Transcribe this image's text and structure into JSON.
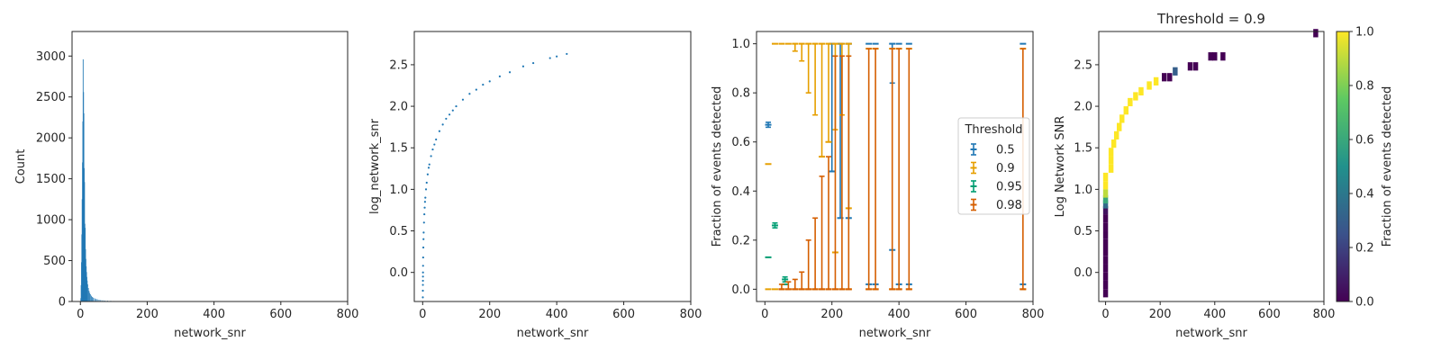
{
  "chart_data": [
    {
      "type": "bar",
      "xlabel": "network_snr",
      "ylabel": "Count",
      "xlim": [
        -25,
        800
      ],
      "ylim": [
        0,
        3300
      ],
      "xticks": [
        "0",
        "200",
        "400",
        "600",
        "800"
      ],
      "yticks": [
        "0",
        "500",
        "1000",
        "1500",
        "2000",
        "2500",
        "3000"
      ],
      "color": "#1f77b4",
      "histogram": [
        [
          0.5,
          40
        ],
        [
          1.5,
          200
        ],
        [
          2.5,
          480
        ],
        [
          3.5,
          820
        ],
        [
          4.5,
          1250
        ],
        [
          5.5,
          1700
        ],
        [
          6.5,
          2200
        ],
        [
          7.5,
          2960
        ],
        [
          8.5,
          2560
        ],
        [
          9.5,
          2300
        ],
        [
          10.5,
          1630
        ],
        [
          11.5,
          1460
        ],
        [
          12.5,
          950
        ],
        [
          13.5,
          900
        ],
        [
          14.5,
          640
        ],
        [
          15.5,
          520
        ],
        [
          16.5,
          430
        ],
        [
          17.5,
          360
        ],
        [
          18.5,
          300
        ],
        [
          19.5,
          255
        ],
        [
          21,
          210
        ],
        [
          23,
          165
        ],
        [
          25,
          130
        ],
        [
          27,
          105
        ],
        [
          29,
          88
        ],
        [
          32,
          70
        ],
        [
          35,
          56
        ],
        [
          38,
          46
        ],
        [
          42,
          38
        ],
        [
          46,
          32
        ],
        [
          50,
          27
        ],
        [
          55,
          22
        ],
        [
          60,
          18
        ],
        [
          66,
          15
        ],
        [
          72,
          12
        ],
        [
          80,
          10
        ],
        [
          90,
          8
        ],
        [
          100,
          6
        ],
        [
          115,
          5
        ],
        [
          130,
          4
        ],
        [
          150,
          3
        ],
        [
          175,
          2
        ],
        [
          200,
          2
        ],
        [
          250,
          2
        ]
      ]
    },
    {
      "type": "scatter",
      "xlabel": "network_snr",
      "ylabel": "log_network_snr",
      "xlim": [
        -25,
        800
      ],
      "ylim": [
        -0.35,
        2.9
      ],
      "xticks": [
        "0",
        "200",
        "400",
        "600",
        "800"
      ],
      "yticks": [
        "0.0",
        "0.5",
        "1.0",
        "1.5",
        "2.0",
        "2.5"
      ],
      "color": "#1f77b4",
      "points": [
        [
          0.5,
          -0.3
        ],
        [
          0.6,
          -0.22
        ],
        [
          0.7,
          -0.15
        ],
        [
          0.8,
          -0.1
        ],
        [
          0.9,
          -0.05
        ],
        [
          1,
          0
        ],
        [
          1.2,
          0.08
        ],
        [
          1.5,
          0.18
        ],
        [
          2,
          0.3
        ],
        [
          2.5,
          0.4
        ],
        [
          3,
          0.48
        ],
        [
          4,
          0.6
        ],
        [
          5,
          0.7
        ],
        [
          6,
          0.78
        ],
        [
          7,
          0.85
        ],
        [
          8,
          0.9
        ],
        [
          10,
          1.0
        ],
        [
          12,
          1.08
        ],
        [
          15,
          1.18
        ],
        [
          18,
          1.26
        ],
        [
          20,
          1.3
        ],
        [
          25,
          1.4
        ],
        [
          30,
          1.48
        ],
        [
          35,
          1.54
        ],
        [
          40,
          1.6
        ],
        [
          50,
          1.7
        ],
        [
          60,
          1.78
        ],
        [
          70,
          1.85
        ],
        [
          80,
          1.9
        ],
        [
          90,
          1.95
        ],
        [
          100,
          2.0
        ],
        [
          120,
          2.08
        ],
        [
          140,
          2.15
        ],
        [
          160,
          2.2
        ],
        [
          180,
          2.26
        ],
        [
          200,
          2.3
        ],
        [
          230,
          2.36
        ],
        [
          260,
          2.41
        ],
        [
          300,
          2.48
        ],
        [
          330,
          2.52
        ],
        [
          380,
          2.58
        ],
        [
          400,
          2.6
        ],
        [
          430,
          2.63
        ]
      ]
    },
    {
      "type": "scatter",
      "xlabel": "network_snr",
      "ylabel": "Fraction of events detected",
      "xlim": [
        -25,
        800
      ],
      "ylim": [
        -0.05,
        1.05
      ],
      "xticks": [
        "0",
        "200",
        "400",
        "600",
        "800"
      ],
      "yticks": [
        "0.0",
        "0.2",
        "0.4",
        "0.6",
        "0.8",
        "1.0"
      ],
      "legend": {
        "title": "Threshold",
        "position": "center-right"
      },
      "series": [
        {
          "name": "0.5",
          "color": "#1f77b4",
          "points": [
            [
              10,
              0.67,
              0.01,
              0.01
            ],
            [
              200,
              1,
              0.52,
              0
            ],
            [
              225,
              1,
              0.71,
              0
            ],
            [
              250,
              1,
              0.71,
              0
            ],
            [
              200,
              0.48,
              0,
              0
            ],
            [
              225,
              0.29,
              0,
              0
            ],
            [
              250,
              0.29,
              0,
              0
            ],
            [
              310,
              1,
              0,
              0
            ],
            [
              330,
              1,
              0,
              0
            ],
            [
              310,
              0.02,
              0,
              0
            ],
            [
              330,
              0.02,
              0,
              0
            ],
            [
              380,
              1,
              0.16,
              0
            ],
            [
              380,
              0.16,
              0,
              0
            ],
            [
              400,
              1,
              0,
              0
            ],
            [
              430,
              1,
              0,
              0
            ],
            [
              400,
              0.02,
              0,
              0
            ],
            [
              430,
              0.02,
              0,
              0
            ],
            [
              770,
              1,
              0,
              0
            ],
            [
              770,
              0.02,
              0,
              0
            ]
          ]
        },
        {
          "name": "0.9",
          "color": "#e69f00",
          "points": [
            [
              10,
              0.51,
              0,
              0
            ],
            [
              30,
              1,
              0,
              0
            ],
            [
              50,
              1,
              0,
              0
            ],
            [
              70,
              1,
              0,
              0
            ],
            [
              90,
              1,
              0.03,
              0
            ],
            [
              110,
              1,
              0.07,
              0
            ],
            [
              130,
              1,
              0.2,
              0
            ],
            [
              150,
              1,
              0.29,
              0
            ],
            [
              170,
              1,
              0.46,
              0
            ],
            [
              190,
              1,
              0.4,
              0
            ],
            [
              210,
              1,
              0.35,
              0
            ],
            [
              230,
              1,
              0.29,
              0
            ],
            [
              250,
              1,
              0.67,
              0
            ],
            [
              170,
              0.54,
              0,
              0
            ],
            [
              190,
              0.6,
              0,
              0
            ],
            [
              210,
              0.15,
              0,
              0
            ],
            [
              250,
              0.33,
              0,
              0
            ],
            [
              310,
              0.98,
              0,
              0
            ],
            [
              330,
              0.98,
              0,
              0
            ],
            [
              380,
              0.98,
              0,
              0
            ],
            [
              400,
              0.98,
              0,
              0
            ],
            [
              430,
              0.98,
              0,
              0
            ],
            [
              770,
              0.98,
              0,
              0
            ],
            [
              10,
              0,
              0,
              0
            ],
            [
              30,
              0,
              0,
              0
            ],
            [
              50,
              0,
              0,
              0
            ],
            [
              70,
              0,
              0,
              0
            ],
            [
              90,
              0,
              0,
              0
            ],
            [
              110,
              0,
              0,
              0
            ],
            [
              130,
              0,
              0,
              0
            ],
            [
              150,
              0,
              0,
              0
            ],
            [
              170,
              0,
              0,
              0
            ],
            [
              190,
              0,
              0,
              0
            ],
            [
              210,
              0,
              0,
              0
            ],
            [
              230,
              0,
              0,
              0
            ],
            [
              250,
              0,
              0,
              0
            ],
            [
              310,
              0,
              0,
              0
            ],
            [
              330,
              0,
              0,
              0
            ],
            [
              380,
              0,
              0,
              0
            ],
            [
              400,
              0,
              0,
              0
            ],
            [
              430,
              0,
              0,
              0
            ],
            [
              770,
              0,
              0,
              0
            ]
          ]
        },
        {
          "name": "0.95",
          "color": "#009e73",
          "points": [
            [
              10,
              0.13,
              0,
              0
            ],
            [
              30,
              0.26,
              0.01,
              0.01
            ],
            [
              60,
              0.04,
              0.01,
              0.01
            ],
            [
              60,
              0.02,
              0,
              0
            ]
          ]
        },
        {
          "name": "0.98",
          "color": "#d55e00",
          "points": [
            [
              50,
              0,
              0,
              0.02
            ],
            [
              70,
              0,
              0,
              0.03
            ],
            [
              90,
              0,
              0,
              0.04
            ],
            [
              110,
              0,
              0,
              0.07
            ],
            [
              130,
              0,
              0,
              0.2
            ],
            [
              150,
              0,
              0,
              0.29
            ],
            [
              170,
              0,
              0,
              0.46
            ],
            [
              190,
              0,
              0,
              0.54
            ],
            [
              210,
              0,
              0,
              0.95
            ],
            [
              230,
              0,
              0,
              0.95
            ],
            [
              250,
              0,
              0,
              0.95
            ],
            [
              310,
              0,
              0,
              0.98
            ],
            [
              330,
              0,
              0,
              0.98
            ],
            [
              380,
              0,
              0,
              0.98
            ],
            [
              400,
              0,
              0,
              0.98
            ],
            [
              430,
              0,
              0,
              0.98
            ],
            [
              770,
              0,
              0,
              0.98
            ]
          ]
        }
      ]
    },
    {
      "type": "heatmap",
      "title": "Threshold = 0.9",
      "xlabel": "network_snr",
      "ylabel": "Log Network SNR",
      "xlim": [
        -25,
        800
      ],
      "ylim": [
        -0.35,
        2.9
      ],
      "xticks": [
        "0",
        "200",
        "400",
        "600",
        "800"
      ],
      "yticks": [
        "0.0",
        "0.5",
        "1.0",
        "1.5",
        "2.0",
        "2.5"
      ],
      "colorbar": {
        "label": "Fraction of events detected",
        "range": [
          0,
          1
        ],
        "ticks": [
          "0.0",
          "0.2",
          "0.4",
          "0.6",
          "0.8",
          "1.0"
        ]
      },
      "cells": [
        [
          0,
          -0.25,
          0
        ],
        [
          0,
          -0.15,
          0
        ],
        [
          0,
          -0.05,
          0
        ],
        [
          0,
          0.05,
          0
        ],
        [
          0,
          0.15,
          0
        ],
        [
          0,
          0.25,
          0
        ],
        [
          0,
          0.35,
          0
        ],
        [
          0,
          0.45,
          0
        ],
        [
          0,
          0.55,
          0
        ],
        [
          0,
          0.65,
          0
        ],
        [
          0,
          0.75,
          0.05
        ],
        [
          0,
          0.82,
          0.35
        ],
        [
          0,
          0.88,
          0.6
        ],
        [
          0,
          0.95,
          0.9
        ],
        [
          0,
          1.05,
          1
        ],
        [
          0,
          1.15,
          1
        ],
        [
          20,
          1.25,
          1
        ],
        [
          20,
          1.35,
          1
        ],
        [
          20,
          1.45,
          1
        ],
        [
          30,
          1.55,
          1
        ],
        [
          40,
          1.65,
          1
        ],
        [
          50,
          1.75,
          1
        ],
        [
          60,
          1.85,
          1
        ],
        [
          75,
          1.95,
          1
        ],
        [
          90,
          2.05,
          1
        ],
        [
          110,
          2.12,
          1
        ],
        [
          130,
          2.18,
          1
        ],
        [
          160,
          2.25,
          1
        ],
        [
          185,
          2.3,
          1
        ],
        [
          215,
          2.35,
          0
        ],
        [
          235,
          2.35,
          0
        ],
        [
          255,
          2.42,
          0.3
        ],
        [
          310,
          2.48,
          0
        ],
        [
          330,
          2.48,
          0
        ],
        [
          385,
          2.6,
          0
        ],
        [
          400,
          2.6,
          0
        ],
        [
          430,
          2.6,
          0
        ],
        [
          770,
          2.88,
          0
        ]
      ]
    }
  ]
}
